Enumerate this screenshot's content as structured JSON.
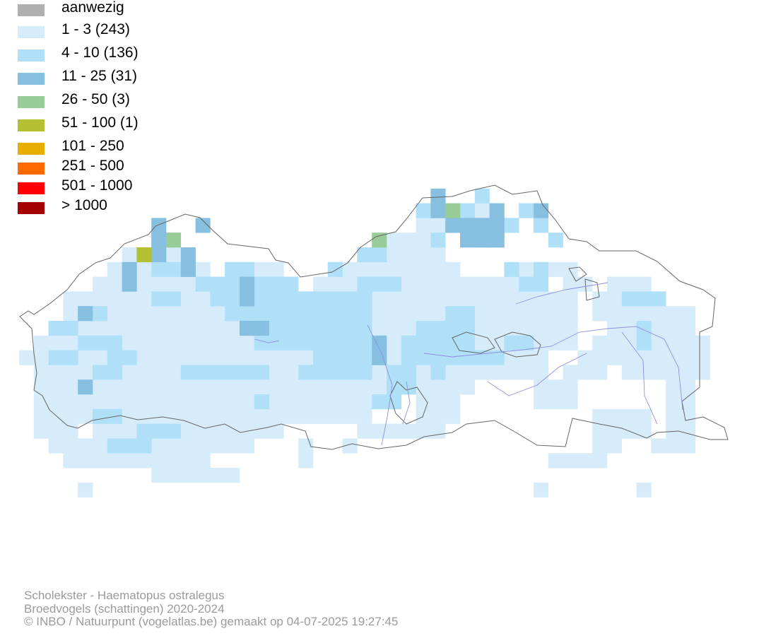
{
  "legend": {
    "items": [
      {
        "label": "aanwezig",
        "color": "#b0b0b0"
      },
      {
        "label": "1 - 3 (243)",
        "color": "#d6ecfa"
      },
      {
        "label": "4 - 10 (136)",
        "color": "#b0e0f8"
      },
      {
        "label": "11 - 25 (31)",
        "color": "#86bfdf"
      },
      {
        "label": "26 - 50 (3)",
        "color": "#98cc98"
      },
      {
        "label": "51 - 100 (1)",
        "color": "#b2c032"
      },
      {
        "label": "101 - 250",
        "color": "#e5ae00"
      },
      {
        "label": "251 - 500",
        "color": "#ff6a00"
      },
      {
        "label": "501 - 1000",
        "color": "#ff0000"
      },
      {
        "label": "> 1000",
        "color": "#a50000"
      }
    ]
  },
  "footer": {
    "species": "Scholekster - Haematopus ostralegus",
    "dataset": "Broedvogels (schattingen) 2020-2024",
    "credit": "© INBO / Natuurpunt (vogelatlas.be) gemaakt op 04-07-2025 19:27:45"
  }
}
